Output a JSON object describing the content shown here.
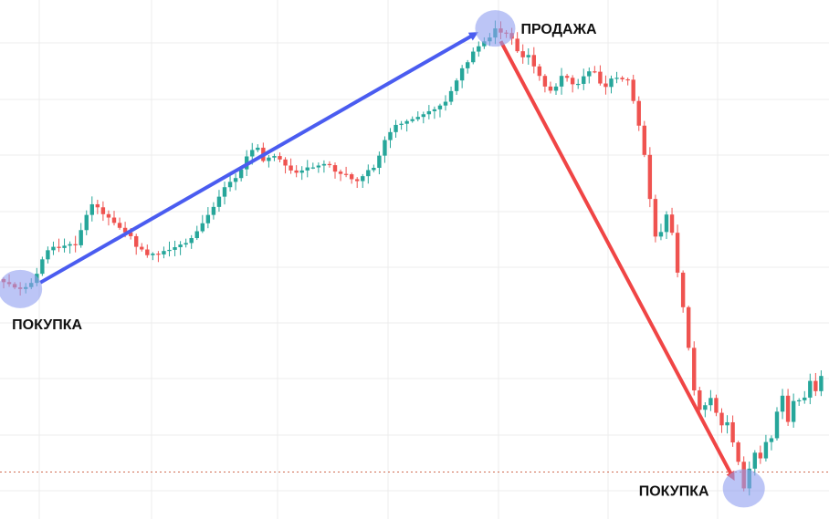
{
  "chart_data": {
    "type": "candlestick",
    "grid": true,
    "colors": {
      "up": "#26a69a",
      "down": "#ef5350",
      "buy_arrow": "#4a5cf0",
      "sell_arrow": "#f04545",
      "marker": "#a9b4f0",
      "price_line": "#d06a50",
      "grid": "#ececec"
    },
    "ylim": [
      0,
      100
    ],
    "price_line_level": 3.0,
    "closes": [
      53,
      52.5,
      51.6,
      51.2,
      51.7,
      52.8,
      55.2,
      59,
      61.4,
      62.3,
      62,
      62.6,
      63,
      62.7,
      66.7,
      70.7,
      73.5,
      72.7,
      70.9,
      70,
      68.6,
      67.3,
      66.1,
      65.1,
      62.3,
      61.6,
      60.1,
      60.5,
      60.3,
      61.2,
      61.5,
      62.2,
      62.9,
      63.3,
      64.6,
      66.4,
      68.5,
      70.7,
      72.8,
      75.5,
      78,
      79.4,
      80.4,
      82.7,
      86.1,
      87.8,
      88.4,
      84.9,
      85.8,
      86.2,
      85.3,
      83.7,
      82.4,
      81.8,
      82.4,
      83.2,
      83.2,
      83.7,
      84.1,
      83.8,
      82.1,
      81.5,
      81.4,
      80.1,
      79.6,
      80.9,
      82.5,
      83.1,
      86.3,
      90.4,
      92.5,
      94.4,
      94.7,
      95.4,
      95.9,
      96.5,
      97.2,
      98,
      98.5,
      99.5,
      100.5,
      103.3,
      106.1,
      109.3,
      110.9,
      113.7,
      115.1,
      116.4,
      117.4,
      119.8,
      118.7,
      118.6,
      117.1,
      113.8,
      112.2,
      112.8,
      109.8,
      107.3,
      104.5,
      103.4,
      104.5,
      107.3,
      106.8,
      105.1,
      105.2,
      107.2,
      108.5,
      108.4,
      105.3,
      104.4,
      106.6,
      106.8,
      106.4,
      106.3,
      100.7,
      94.2,
      86.5,
      74.9,
      65,
      66.2,
      70.8,
      66,
      55.5,
      46.4,
      35.7,
      24.5,
      19.4,
      20.6,
      22.5,
      18.6,
      15.3,
      16.1,
      10.8,
      5.7,
      -1.3,
      3.9,
      8.1,
      6.6,
      10.9,
      11.9,
      18.9,
      23.1,
      16.2,
      21.7,
      21.9,
      22.6,
      27,
      24.3,
      28.3
    ],
    "annotations": [
      {
        "label": "ПОКУПКА"
      },
      {
        "label": "ПРОДАЖА"
      },
      {
        "label": "ПОКУПКА"
      }
    ]
  }
}
